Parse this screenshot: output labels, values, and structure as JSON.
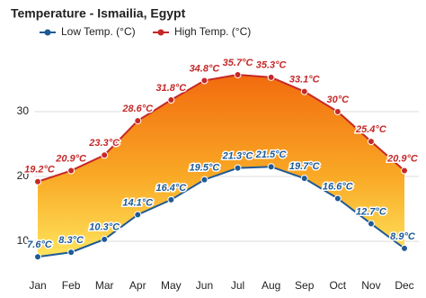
{
  "chart_data": {
    "type": "line",
    "title": "Temperature - Ismailia, Egypt",
    "categories": [
      "Jan",
      "Feb",
      "Mar",
      "Apr",
      "May",
      "Jun",
      "Jul",
      "Aug",
      "Sep",
      "Oct",
      "Nov",
      "Dec"
    ],
    "series": [
      {
        "name": "Low Temp. (°C)",
        "color": "#1f5a96",
        "values": [
          7.6,
          8.3,
          10.3,
          14.1,
          16.4,
          19.5,
          21.3,
          21.5,
          19.7,
          16.6,
          12.7,
          8.9
        ],
        "value_labels": [
          "7.6°C",
          "8.3°C",
          "10.3°C",
          "14.1°C",
          "16.4°C",
          "19.5°C",
          "21.3°C",
          "21.5°C",
          "19.7°C",
          "16.6°C",
          "12.7°C",
          "8.9°C"
        ]
      },
      {
        "name": "High Temp. (°C)",
        "color": "#c62828",
        "values": [
          19.2,
          20.9,
          23.3,
          28.6,
          31.8,
          34.8,
          35.7,
          35.3,
          33.1,
          30,
          25.4,
          20.9
        ],
        "value_labels": [
          "19.2°C",
          "20.9°C",
          "23.3°C",
          "28.6°C",
          "31.8°C",
          "34.8°C",
          "35.7°C",
          "35.3°C",
          "33.1°C",
          "30°C",
          "25.4°C",
          "20.9°C"
        ]
      }
    ],
    "ylim": [
      5.5,
      40
    ],
    "yticks": [
      10,
      20,
      30
    ],
    "grid": true
  }
}
